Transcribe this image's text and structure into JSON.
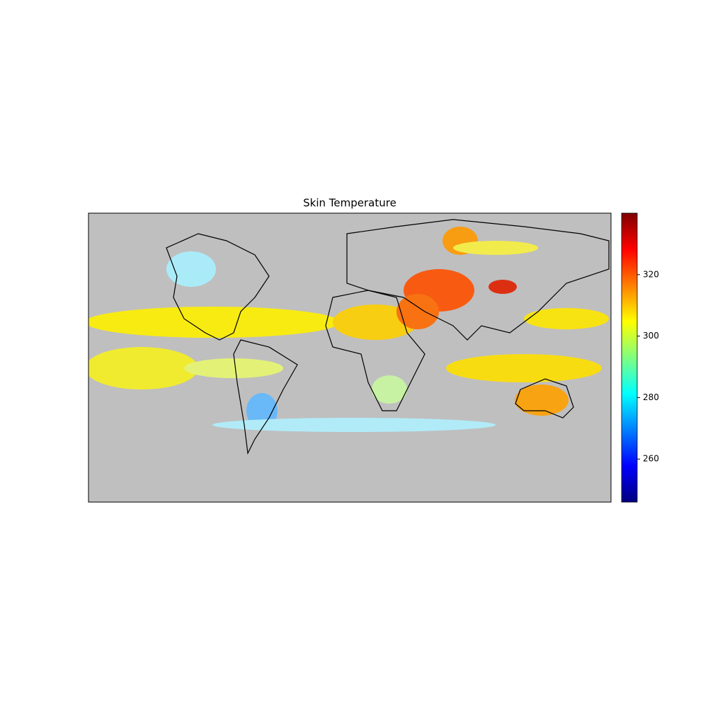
{
  "chart_data": {
    "type": "map",
    "title": "Skin Temperature",
    "colorbar": {
      "lim": [
        246,
        340
      ],
      "ticks": [
        260,
        280,
        300,
        320
      ],
      "colormap": "jet"
    }
  }
}
